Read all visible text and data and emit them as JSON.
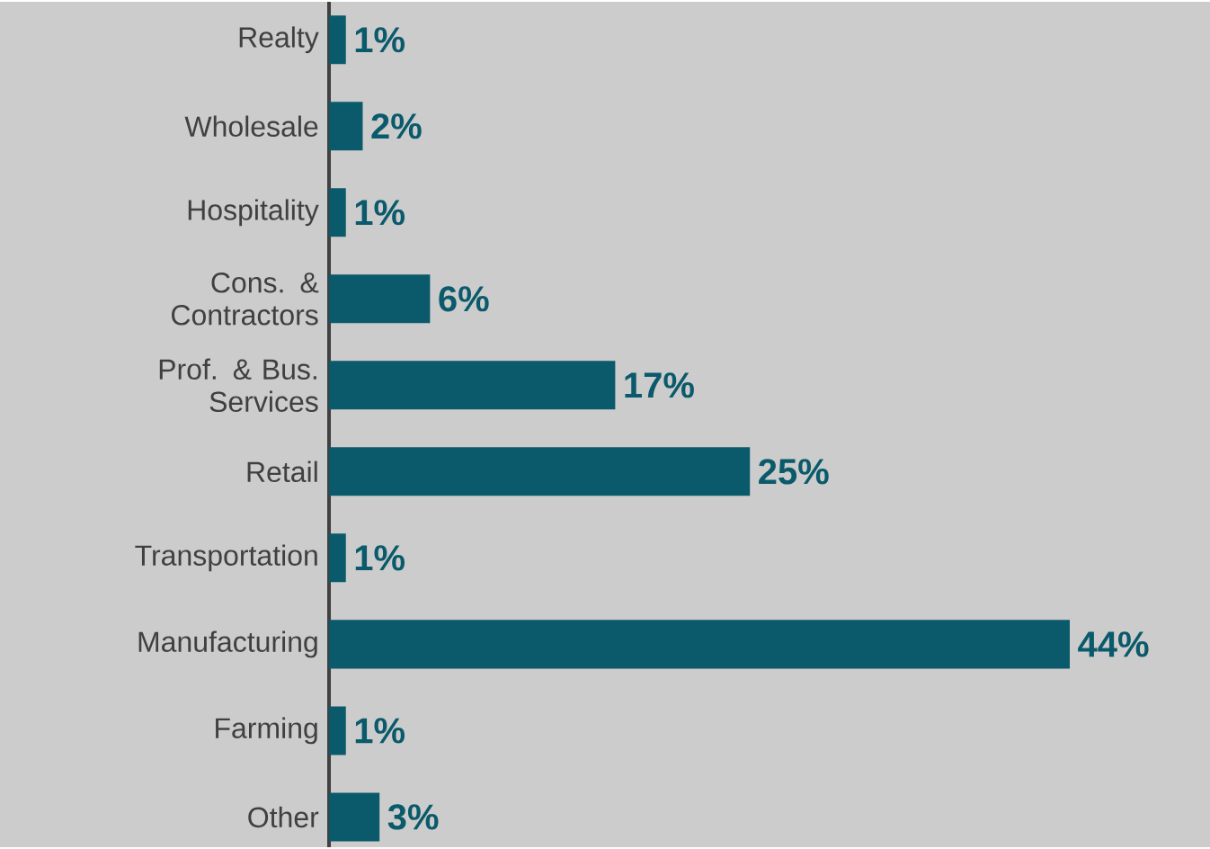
{
  "chart_data": {
    "type": "bar",
    "orientation": "horizontal",
    "categories": [
      "Realty",
      "Wholesale",
      "Hospitality",
      "Cons. & Contractors",
      "Prof. & Bus. Services",
      "Retail",
      "Transportation",
      "Manufacturing",
      "Farming",
      "Other"
    ],
    "values": [
      1,
      2,
      1,
      6,
      17,
      25,
      1,
      44,
      1,
      3
    ],
    "value_labels": [
      "1%",
      "2%",
      "1%",
      "6%",
      "17%",
      "25%",
      "1%",
      "44%",
      "1%",
      "3%"
    ],
    "color": "#0b5a6b"
  }
}
